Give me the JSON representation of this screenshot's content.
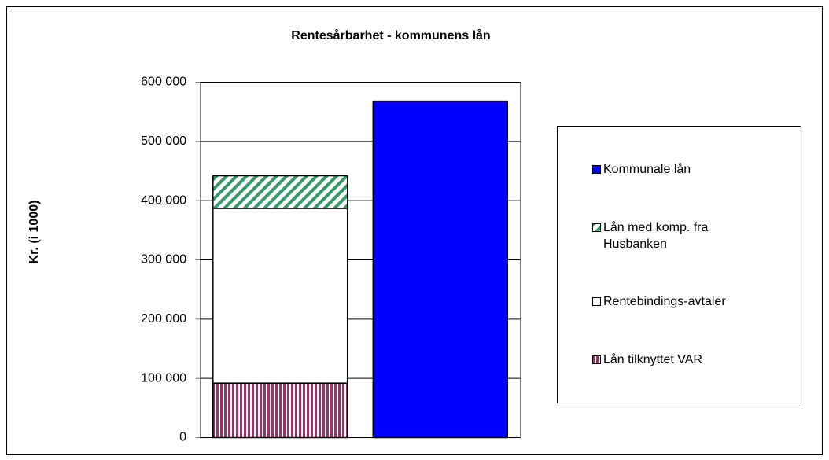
{
  "chart_data": {
    "type": "stacked_bar",
    "title": "Rentesårbarhet - kommunens lån",
    "ylabel": "Kr. (i 1000)",
    "categories": [
      null,
      null
    ],
    "series": [
      {
        "name": "Lån tilknyttet VAR",
        "color": "#993366",
        "pattern": "vertical",
        "values": [
          92000,
          null
        ]
      },
      {
        "name": "Rentebindings-avtaler",
        "color": "#ffffff",
        "pattern": "solid",
        "values": [
          295000,
          null
        ]
      },
      {
        "name": "Lån med komp. fra Husbanken",
        "color": "#339966",
        "pattern": "diagonal",
        "values": [
          55000,
          null
        ]
      },
      {
        "name": "Kommunale lån",
        "color": "#0000ff",
        "pattern": "solid",
        "values": [
          null,
          568000
        ]
      }
    ],
    "ylim": [
      0,
      600000
    ],
    "yticks": [
      {
        "value": 0,
        "label": "0"
      },
      {
        "value": 100000,
        "label": "100 000"
      },
      {
        "value": 200000,
        "label": "200 000"
      },
      {
        "value": 300000,
        "label": "300 000"
      },
      {
        "value": 400000,
        "label": "400 000"
      },
      {
        "value": 500000,
        "label": "500 000"
      },
      {
        "value": 600000,
        "label": "600 000"
      }
    ],
    "grid": true,
    "legend": "right"
  }
}
